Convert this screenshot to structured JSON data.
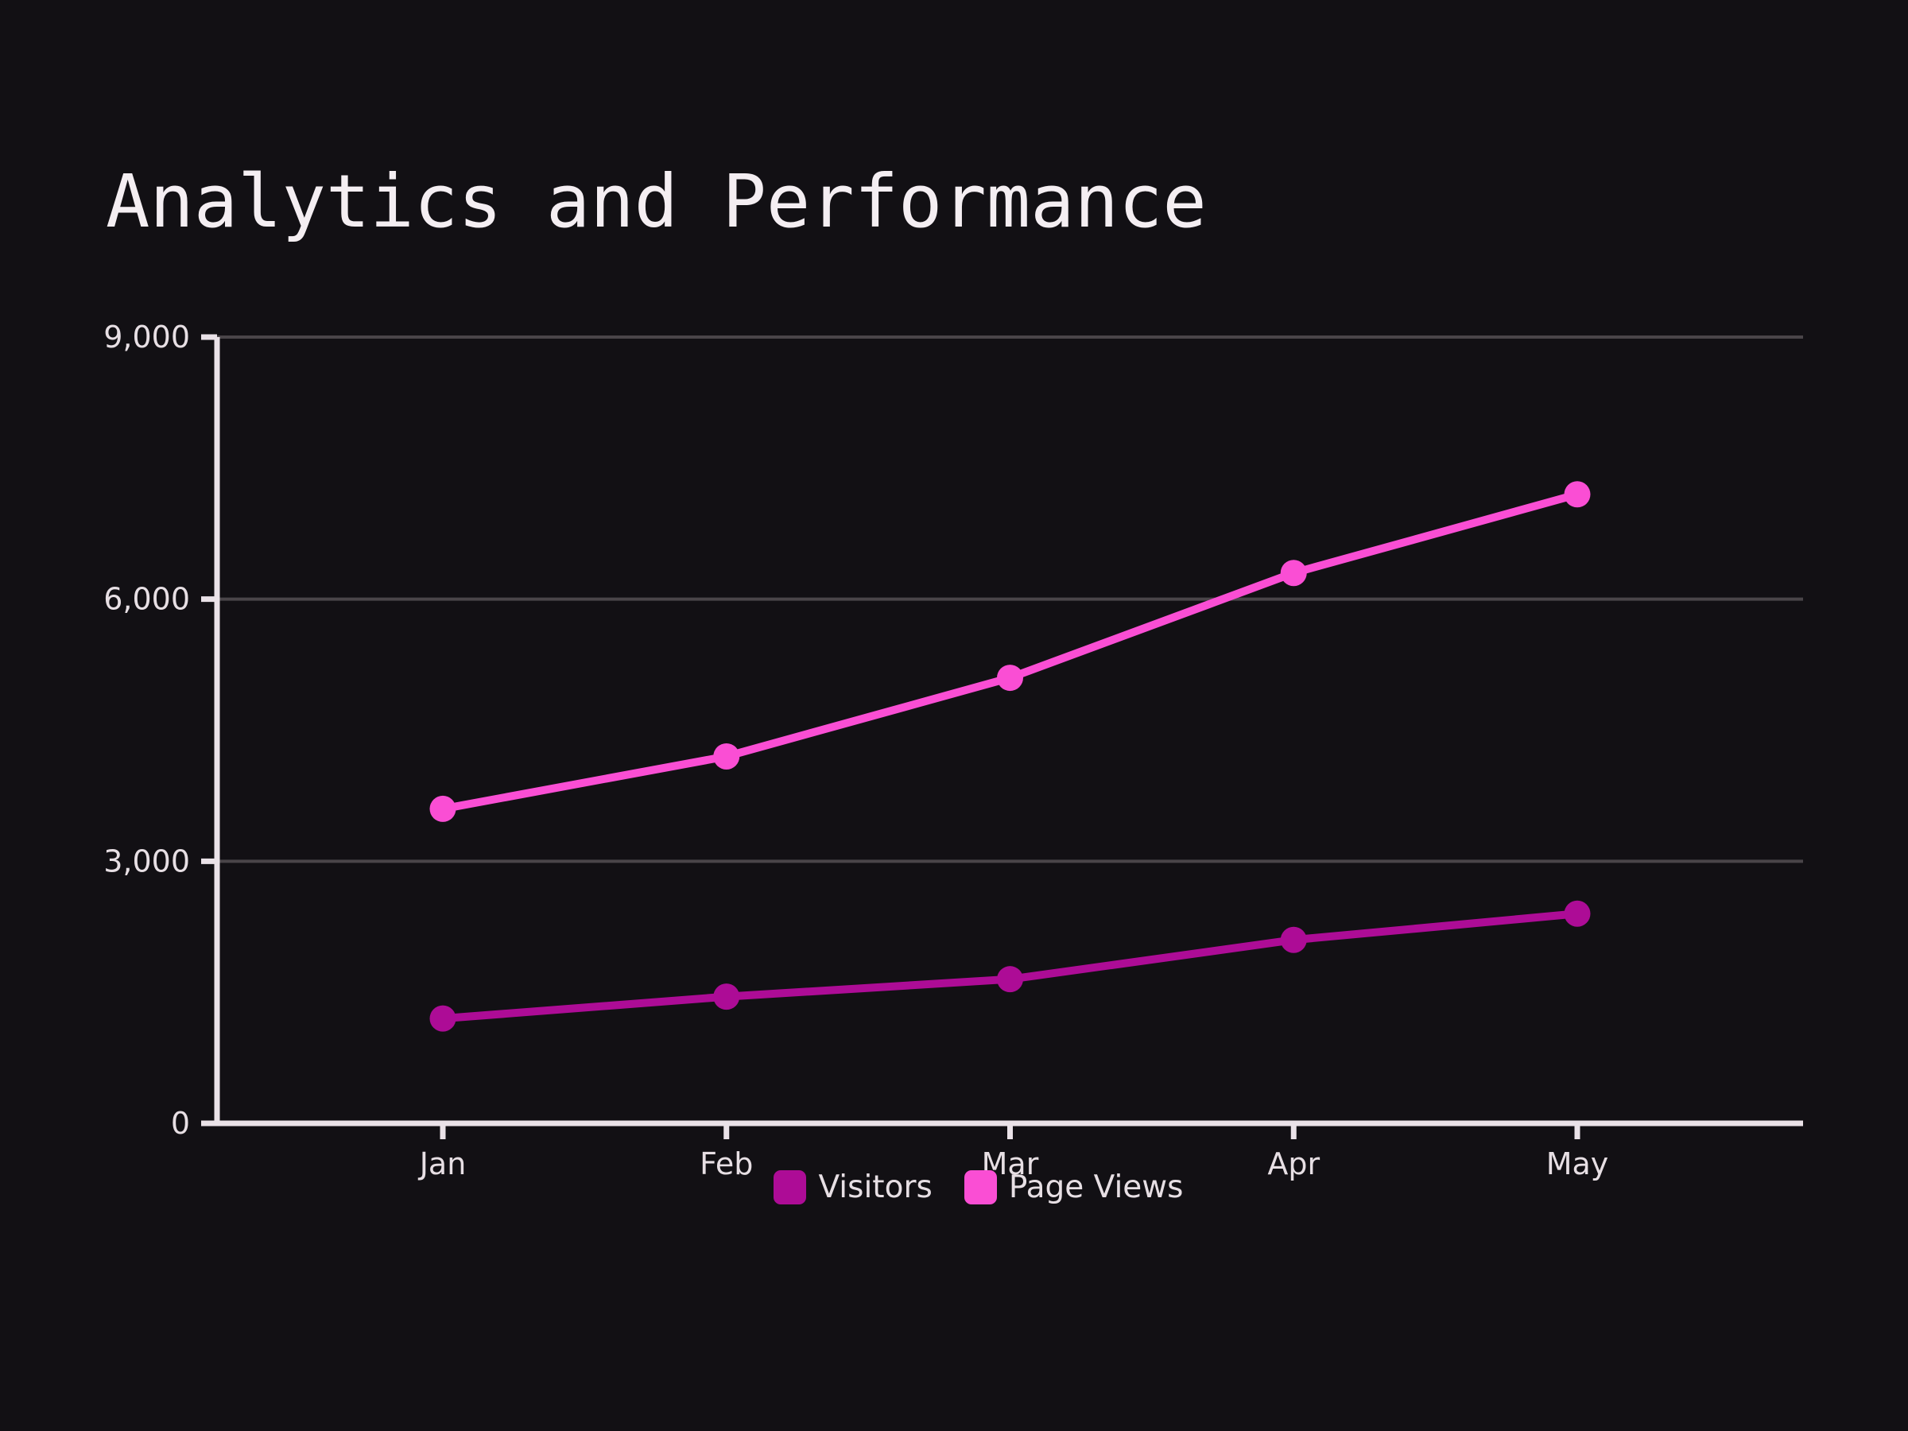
{
  "title": "Analytics and Performance",
  "colors": {
    "background": "#121014",
    "title_text": "#f4eef2",
    "axis": "#eae2e8",
    "grid": "#4a4549",
    "tick_text": "#e7dfe4",
    "visitors": "#ad0c96",
    "page_views": "#fa4ed4"
  },
  "chart_data": {
    "type": "line",
    "title": "Analytics and Performance",
    "x": [
      "Jan",
      "Feb",
      "Mar",
      "Apr",
      "May"
    ],
    "series": [
      {
        "name": "Visitors",
        "color": "#ad0c96",
        "values": [
          1200,
          1450,
          1650,
          2100,
          2400
        ]
      },
      {
        "name": "Page Views",
        "color": "#fa4ed4",
        "values": [
          3600,
          4200,
          5100,
          6300,
          7200
        ]
      }
    ],
    "ylim": [
      0,
      9000
    ],
    "y_ticks": [
      {
        "value": 0,
        "label": "0"
      },
      {
        "value": 3000,
        "label": "3,000"
      },
      {
        "value": 6000,
        "label": "6,000"
      },
      {
        "value": 9000,
        "label": "9,000"
      }
    ],
    "grid": "horizontal",
    "legend_position": "bottom",
    "markers": true
  }
}
